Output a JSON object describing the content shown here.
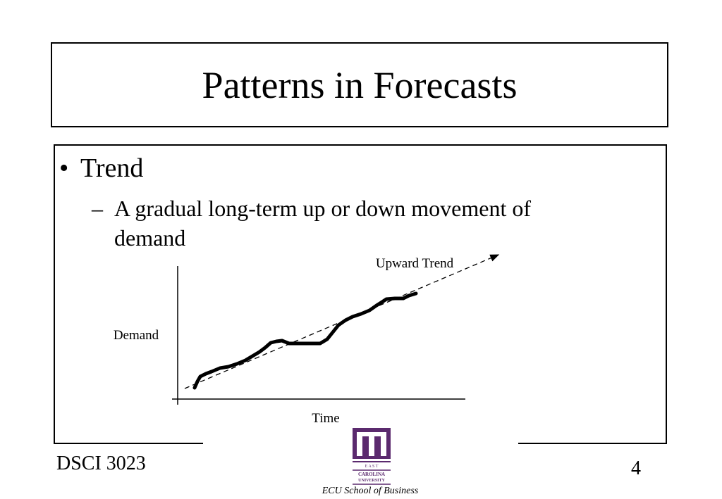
{
  "slide": {
    "title": "Patterns in Forecasts",
    "bullet": "Trend",
    "sub_bullet_line1": "A gradual long-term up or down movement of",
    "sub_bullet_line2": "demand",
    "footer_course": "DSCI 3023",
    "page_number": "4",
    "logo_text": [
      "E A S T",
      "CAROLINA",
      "UNIVERSITY"
    ],
    "logo_caption": "ECU School of Business",
    "logo_color": "#5b2a6e"
  },
  "chart": {
    "ylabel": "Demand",
    "xlabel": "Time",
    "annotation": "Upward Trend"
  }
}
